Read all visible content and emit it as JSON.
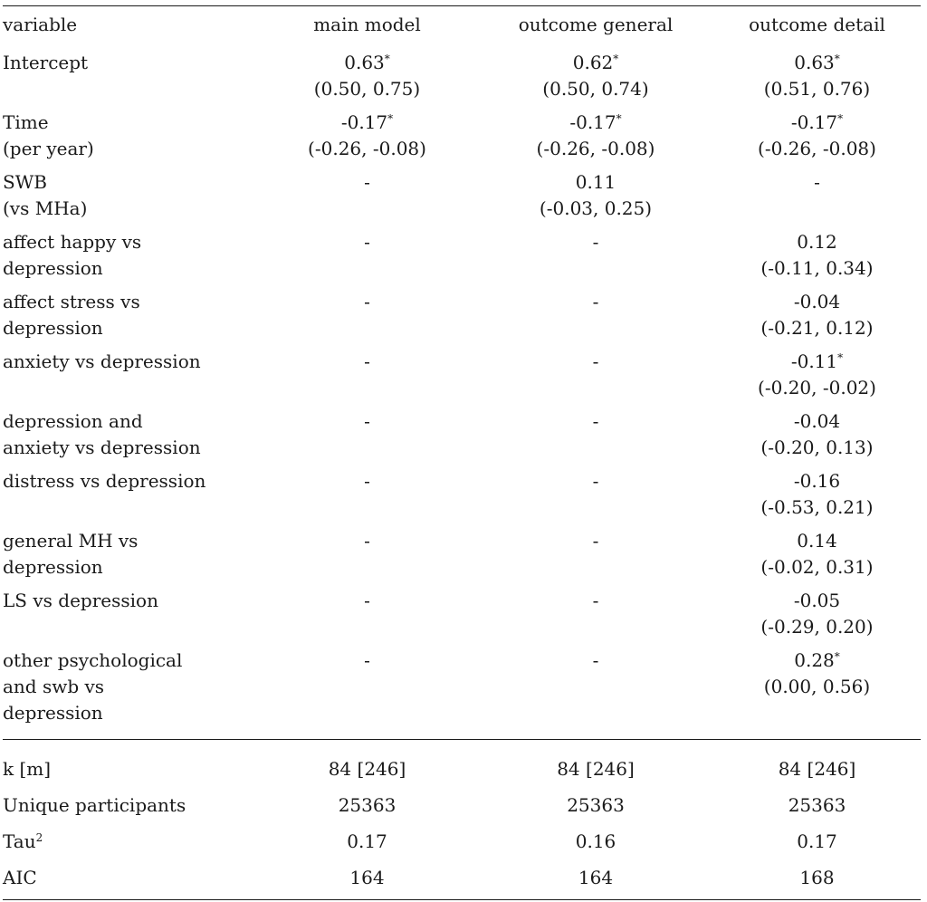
{
  "header": {
    "variable": "variable",
    "main_model": "main model",
    "outcome_general": "outcome general",
    "outcome_detail": "outcome detail"
  },
  "coef_rows": [
    {
      "label": [
        "Intercept"
      ],
      "main_model": {
        "est": "0.63",
        "sig": "*",
        "ci": "(0.50, 0.75)"
      },
      "outcome_general": {
        "est": "0.62",
        "sig": "*",
        "ci": "(0.50, 0.74)"
      },
      "outcome_detail": {
        "est": "0.63",
        "sig": "*",
        "ci": "(0.51, 0.76)"
      }
    },
    {
      "label": [
        "Time",
        "(per year)"
      ],
      "main_model": {
        "est": "-0.17",
        "sig": "*",
        "ci": "(-0.26, -0.08)"
      },
      "outcome_general": {
        "est": "-0.17",
        "sig": "*",
        "ci": "(-0.26, -0.08)"
      },
      "outcome_detail": {
        "est": "-0.17",
        "sig": "*",
        "ci": "(-0.26, -0.08)"
      }
    },
    {
      "label": [
        "SWB",
        "(vs MHa)"
      ],
      "main_model": {
        "est": "-",
        "sig": "",
        "ci": ""
      },
      "outcome_general": {
        "est": "0.11",
        "sig": "",
        "ci": "(-0.03, 0.25)"
      },
      "outcome_detail": {
        "est": "-",
        "sig": "",
        "ci": ""
      }
    },
    {
      "label": [
        "affect happy vs",
        "depression"
      ],
      "main_model": {
        "est": "-",
        "sig": "",
        "ci": ""
      },
      "outcome_general": {
        "est": "-",
        "sig": "",
        "ci": ""
      },
      "outcome_detail": {
        "est": "0.12",
        "sig": "",
        "ci": "(-0.11, 0.34)"
      }
    },
    {
      "label": [
        "affect stress vs",
        "depression"
      ],
      "main_model": {
        "est": "-",
        "sig": "",
        "ci": ""
      },
      "outcome_general": {
        "est": "-",
        "sig": "",
        "ci": ""
      },
      "outcome_detail": {
        "est": "-0.04",
        "sig": "",
        "ci": "(-0.21, 0.12)"
      }
    },
    {
      "label": [
        "anxiety vs depression"
      ],
      "main_model": {
        "est": "-",
        "sig": "",
        "ci": ""
      },
      "outcome_general": {
        "est": "-",
        "sig": "",
        "ci": ""
      },
      "outcome_detail": {
        "est": "-0.11",
        "sig": "*",
        "ci": "(-0.20, -0.02)"
      }
    },
    {
      "label": [
        "depression and",
        "anxiety vs depression"
      ],
      "main_model": {
        "est": "-",
        "sig": "",
        "ci": ""
      },
      "outcome_general": {
        "est": "-",
        "sig": "",
        "ci": ""
      },
      "outcome_detail": {
        "est": "-0.04",
        "sig": "",
        "ci": "(-0.20, 0.13)"
      }
    },
    {
      "label": [
        "distress vs depression"
      ],
      "main_model": {
        "est": "-",
        "sig": "",
        "ci": ""
      },
      "outcome_general": {
        "est": "-",
        "sig": "",
        "ci": ""
      },
      "outcome_detail": {
        "est": "-0.16",
        "sig": "",
        "ci": "(-0.53, 0.21)"
      }
    },
    {
      "label": [
        "general MH vs",
        "depression"
      ],
      "main_model": {
        "est": "-",
        "sig": "",
        "ci": ""
      },
      "outcome_general": {
        "est": "-",
        "sig": "",
        "ci": ""
      },
      "outcome_detail": {
        "est": "0.14",
        "sig": "",
        "ci": "(-0.02, 0.31)"
      }
    },
    {
      "label": [
        "LS vs depression"
      ],
      "main_model": {
        "est": "-",
        "sig": "",
        "ci": ""
      },
      "outcome_general": {
        "est": "-",
        "sig": "",
        "ci": ""
      },
      "outcome_detail": {
        "est": "-0.05",
        "sig": "",
        "ci": "(-0.29, 0.20)"
      }
    },
    {
      "label": [
        "other psychological",
        "and swb vs",
        "depression"
      ],
      "main_model": {
        "est": "-",
        "sig": "",
        "ci": ""
      },
      "outcome_general": {
        "est": "-",
        "sig": "",
        "ci": ""
      },
      "outcome_detail": {
        "est": "0.28",
        "sig": "*",
        "ci": "(0.00, 0.56)"
      }
    }
  ],
  "stat_rows": [
    {
      "label": "k [m]",
      "sup": "",
      "main_model": "84 [246]",
      "outcome_general": "84 [246]",
      "outcome_detail": "84 [246]"
    },
    {
      "label": "Unique participants",
      "sup": "",
      "main_model": "25363",
      "outcome_general": "25363",
      "outcome_detail": "25363"
    },
    {
      "label": "Tau",
      "sup": "2",
      "main_model": "0.17",
      "outcome_general": "0.16",
      "outcome_detail": "0.17"
    },
    {
      "label": "AIC",
      "sup": "",
      "main_model": "164",
      "outcome_general": "164",
      "outcome_detail": "168"
    }
  ]
}
